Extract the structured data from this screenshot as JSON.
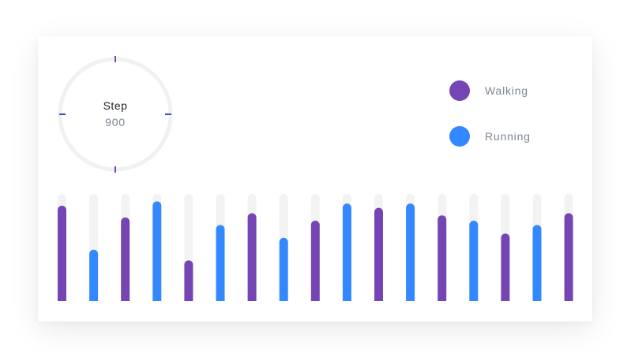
{
  "gauge": {
    "title": "Step",
    "value": "900"
  },
  "legend": [
    {
      "label": "Walking",
      "color": "#7645b4"
    },
    {
      "label": "Running",
      "color": "#3388ff"
    }
  ],
  "colors": {
    "walking": "#7645b4",
    "running": "#3388ff",
    "track": "#f3f3f3",
    "gauge_ring": "#f1f1f1",
    "gauge_tick": "#7645b4"
  },
  "chart_data": {
    "type": "bar",
    "ylim": [
      0,
      100
    ],
    "grid": false,
    "legend_position": "top-right",
    "series_names": [
      "Walking",
      "Running"
    ],
    "values": [
      89,
      48,
      78,
      93,
      38,
      71,
      82,
      59,
      75,
      91,
      87,
      91,
      80,
      75,
      63,
      71,
      82
    ],
    "series": [
      "Walking",
      "Running",
      "Walking",
      "Running",
      "Walking",
      "Running",
      "Walking",
      "Running",
      "Walking",
      "Running",
      "Walking",
      "Running",
      "Walking",
      "Running",
      "Walking",
      "Running",
      "Walking"
    ]
  }
}
